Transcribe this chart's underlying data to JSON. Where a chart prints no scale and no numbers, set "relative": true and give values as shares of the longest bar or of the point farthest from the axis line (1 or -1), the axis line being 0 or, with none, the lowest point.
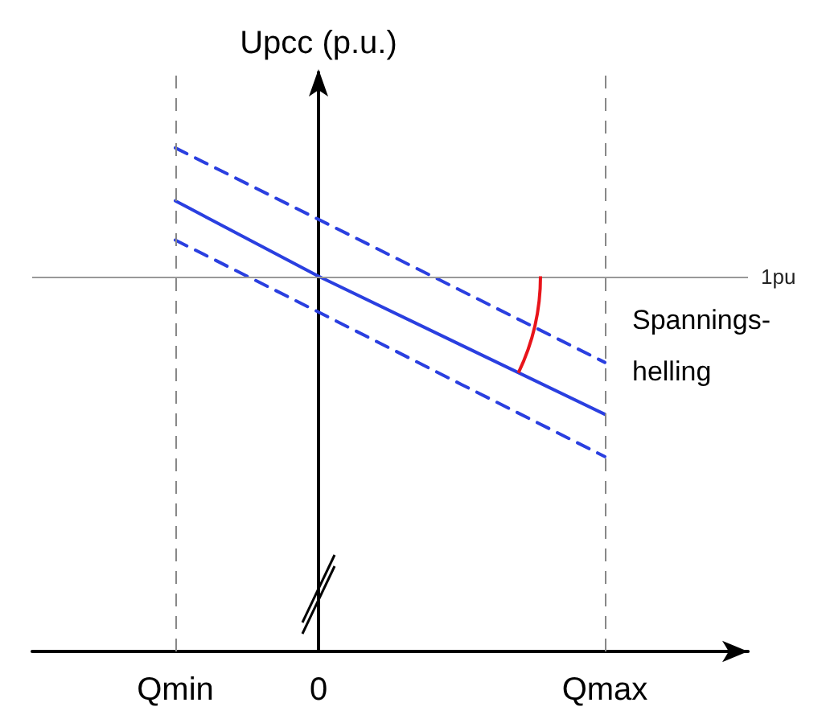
{
  "chart_data": {
    "type": "line",
    "relative": true,
    "ylabel": "Upcc (p.u.)",
    "categories": [
      null,
      "Qmin",
      "0",
      null,
      "Qmax",
      null
    ],
    "series": [
      {
        "color": "#2a3fe0",
        "line_style": "dashed",
        "values": [
          null,
          1.0,
          0.858,
          0.716,
          0.574,
          null
        ]
      },
      {
        "color": "#2a3fe0",
        "line_style": "solid",
        "values": [
          null,
          0.895,
          0.745,
          0.608,
          0.471,
          null
        ]
      },
      {
        "color": "#2a3fe0",
        "line_style": "dashed",
        "values": [
          null,
          0.817,
          0.674,
          0.53,
          0.387,
          null
        ]
      }
    ],
    "ref_lines": [
      {
        "axis": "y",
        "value": 0.745,
        "label": "1pu",
        "color": "#999999",
        "line_style": "solid"
      },
      {
        "axis": "x",
        "value": "Qmin",
        "label": null,
        "color": "#888888",
        "line_style": "dashed"
      },
      {
        "axis": "x",
        "value": "Qmax",
        "label": null,
        "color": "#888888",
        "line_style": "dashed"
      }
    ],
    "annotations": [
      "Spannings-\nhelling"
    ],
    "marker": "none",
    "grid": false
  }
}
